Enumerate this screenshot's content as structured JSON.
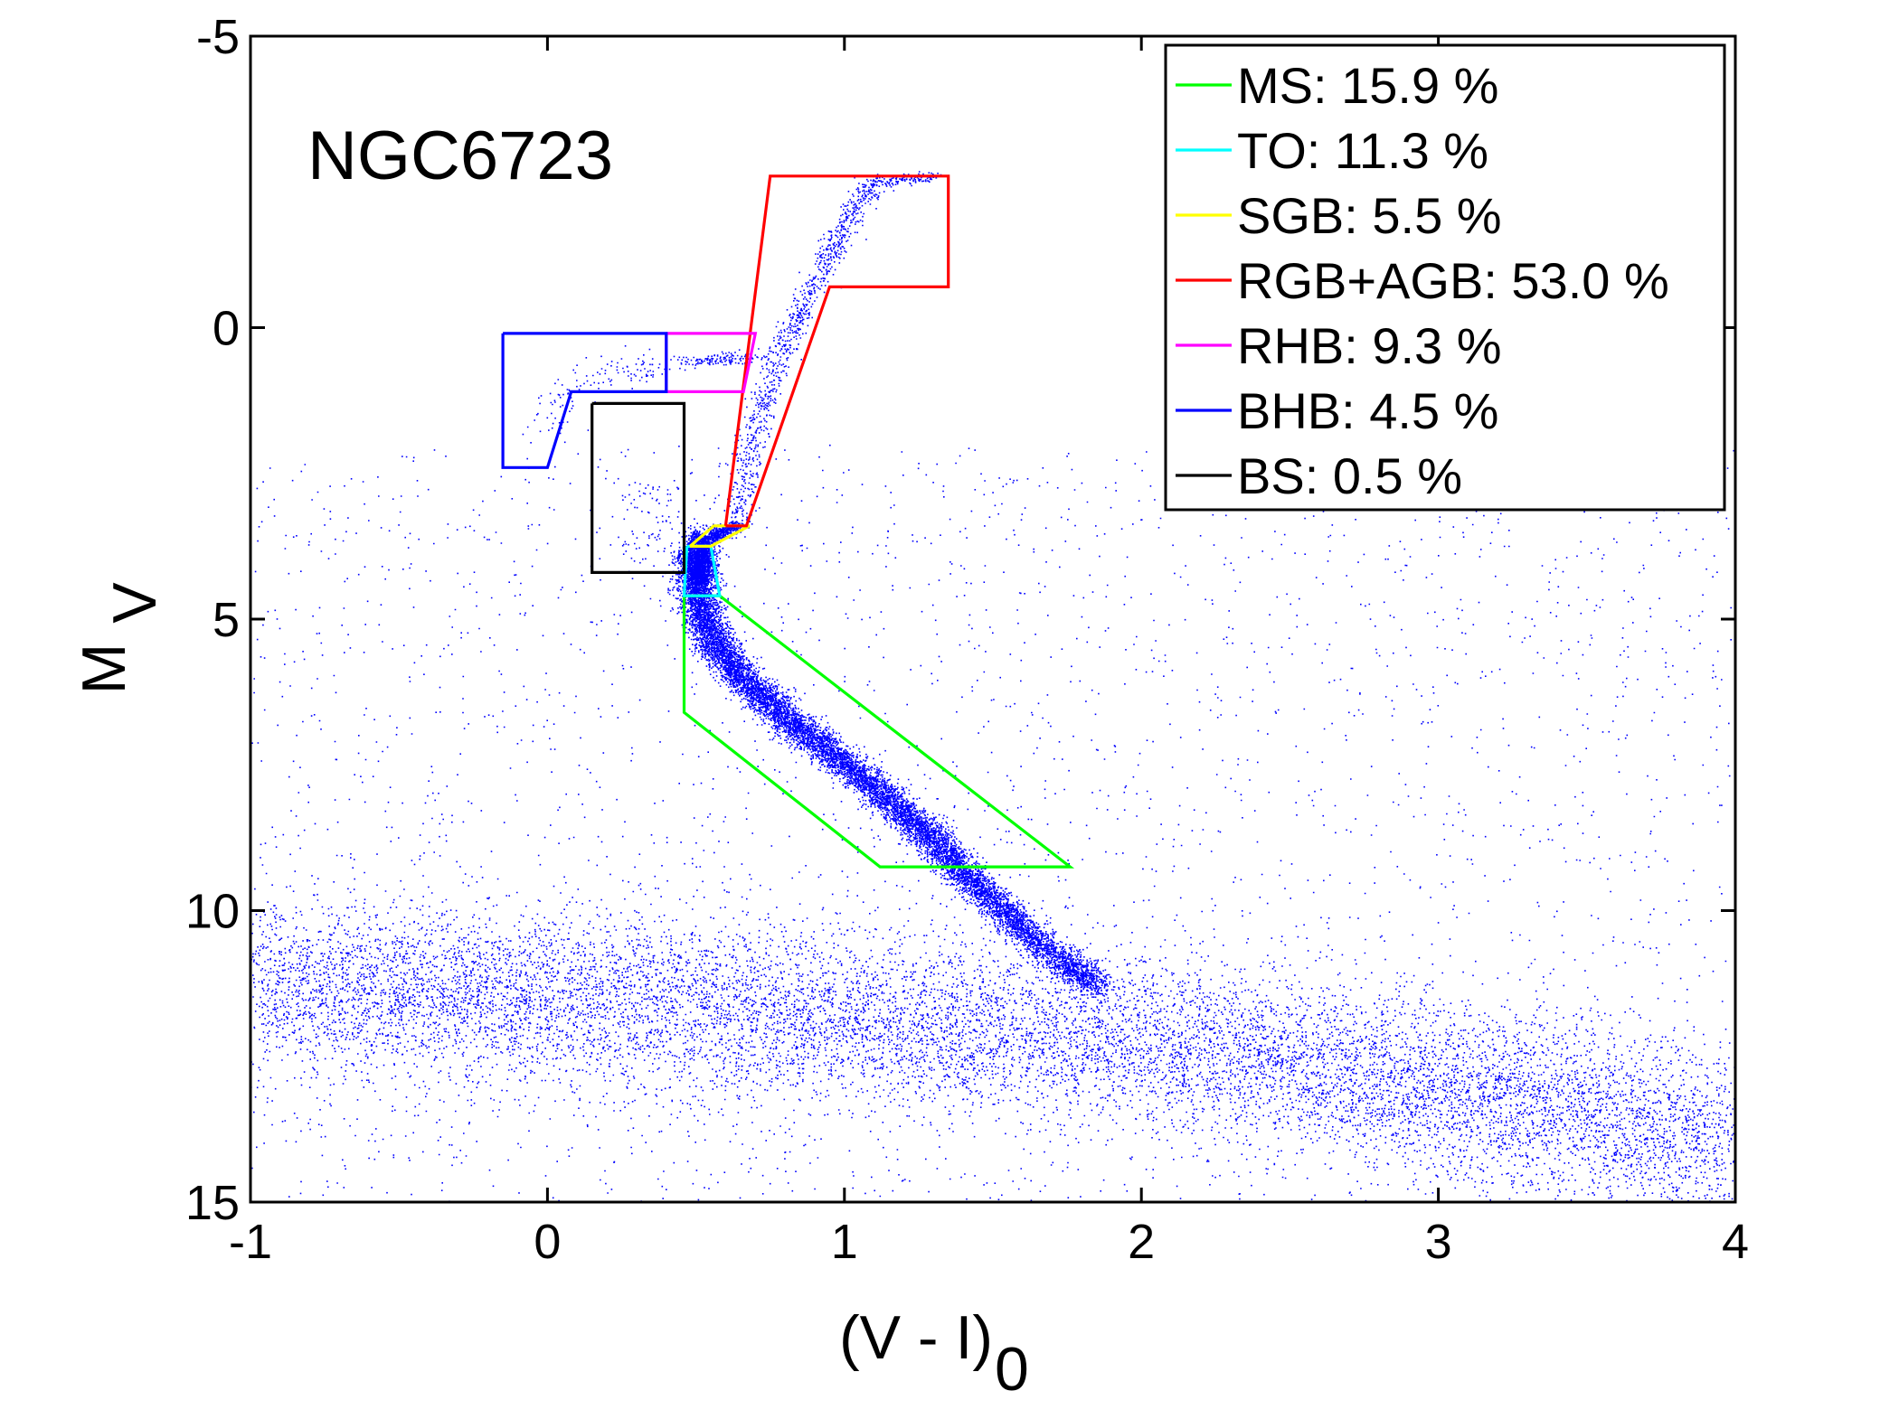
{
  "chart_data": {
    "type": "scatter",
    "title": "",
    "xlabel_main": "(V - I)",
    "xlabel_sub": "0",
    "ylabel_main": "M",
    "ylabel_sub": "V",
    "xlim": [
      -1,
      4
    ],
    "ylim": [
      15,
      -5
    ],
    "y_inverted": true,
    "grid": false,
    "x_ticks": [
      -1,
      0,
      1,
      2,
      3,
      4
    ],
    "x_tick_labels": [
      "-1",
      "0",
      "1",
      "2",
      "3",
      "4"
    ],
    "y_ticks": [
      -5,
      0,
      5,
      10,
      15
    ],
    "y_tick_labels": [
      "-5",
      "0",
      "5",
      "10",
      "15"
    ],
    "annotation": "NGC6723",
    "point_color": "#0000ff",
    "legend_position": "top-right",
    "legend": [
      {
        "label": "MS: 15.9 %",
        "color": "#00ff00"
      },
      {
        "label": "TO: 11.3 %",
        "color": "#00ffff"
      },
      {
        "label": "SGB: 5.5 %",
        "color": "#ffff00"
      },
      {
        "label": "RGB+AGB: 53.0 %",
        "color": "#ff0000"
      },
      {
        "label": "RHB: 9.3 %",
        "color": "#ff00ff"
      },
      {
        "label": "BHB: 4.5 %",
        "color": "#0000ff"
      },
      {
        "label": "BS: 0.5 %",
        "color": "#000000"
      }
    ],
    "regions": [
      {
        "name": "MS",
        "color": "#00ff00",
        "polygon": [
          [
            0.46,
            4.6
          ],
          [
            0.58,
            4.6
          ],
          [
            1.76,
            9.25
          ],
          [
            1.12,
            9.25
          ],
          [
            0.46,
            6.6
          ],
          [
            0.46,
            4.6
          ]
        ]
      },
      {
        "name": "TO",
        "color": "#00ffff",
        "polygon": [
          [
            0.47,
            3.75
          ],
          [
            0.55,
            3.75
          ],
          [
            0.58,
            4.6
          ],
          [
            0.46,
            4.6
          ],
          [
            0.47,
            3.75
          ]
        ]
      },
      {
        "name": "SGB",
        "color": "#ffff00",
        "polygon": [
          [
            0.48,
            3.75
          ],
          [
            0.56,
            3.4
          ],
          [
            0.68,
            3.4
          ],
          [
            0.55,
            3.75
          ],
          [
            0.48,
            3.75
          ]
        ]
      },
      {
        "name": "RGB+AGB",
        "color": "#ff0000",
        "polygon": [
          [
            0.6,
            3.4
          ],
          [
            0.75,
            -2.6
          ],
          [
            1.35,
            -2.6
          ],
          [
            1.35,
            -0.7
          ],
          [
            0.95,
            -0.7
          ],
          [
            0.67,
            3.4
          ],
          [
            0.6,
            3.4
          ]
        ]
      },
      {
        "name": "RHB",
        "color": "#ff00ff",
        "polygon": [
          [
            0.4,
            0.1
          ],
          [
            0.7,
            0.1
          ],
          [
            0.66,
            1.1
          ],
          [
            0.4,
            1.1
          ],
          [
            0.4,
            0.1
          ]
        ]
      },
      {
        "name": "BHB",
        "color": "#0000ff",
        "polygon": [
          [
            -0.15,
            0.1
          ],
          [
            0.4,
            0.1
          ],
          [
            0.4,
            1.1
          ],
          [
            0.08,
            1.1
          ],
          [
            0.0,
            2.4
          ],
          [
            -0.15,
            2.4
          ],
          [
            -0.15,
            0.1
          ]
        ]
      },
      {
        "name": "BS",
        "color": "#000000",
        "polygon": [
          [
            0.15,
            1.3
          ],
          [
            0.46,
            1.3
          ],
          [
            0.46,
            4.2
          ],
          [
            0.15,
            4.2
          ],
          [
            0.15,
            1.3
          ]
        ]
      }
    ],
    "point_groups": [
      {
        "name": "main-sequence",
        "n": 11000,
        "track": [
          [
            0.5,
            3.8
          ],
          [
            0.5,
            4.5
          ],
          [
            0.55,
            5.3
          ],
          [
            0.65,
            6.0
          ],
          [
            0.8,
            6.7
          ],
          [
            0.98,
            7.4
          ],
          [
            1.15,
            8.1
          ],
          [
            1.3,
            8.8
          ],
          [
            1.45,
            9.6
          ],
          [
            1.62,
            10.4
          ],
          [
            1.85,
            11.3
          ]
        ],
        "spread_x": 0.035,
        "spread_y": 0.1
      },
      {
        "name": "turnoff-core",
        "n": 1400,
        "track": [
          [
            0.5,
            3.6
          ],
          [
            0.52,
            4.0
          ],
          [
            0.5,
            4.4
          ]
        ],
        "spread_x": 0.02,
        "spread_y": 0.12
      },
      {
        "name": "subgiant-branch",
        "n": 500,
        "track": [
          [
            0.52,
            3.7
          ],
          [
            0.58,
            3.5
          ],
          [
            0.64,
            3.4
          ]
        ],
        "spread_x": 0.02,
        "spread_y": 0.05
      },
      {
        "name": "red-giant-branch",
        "n": 1100,
        "track": [
          [
            0.64,
            3.4
          ],
          [
            0.68,
            2.0
          ],
          [
            0.74,
            1.0
          ],
          [
            0.82,
            0.0
          ],
          [
            0.92,
            -1.0
          ],
          [
            1.0,
            -1.8
          ],
          [
            1.1,
            -2.5
          ],
          [
            1.3,
            -2.6
          ]
        ],
        "spread_x": 0.025,
        "spread_y": 0.05
      },
      {
        "name": "red-horizontal-branch",
        "n": 140,
        "track": [
          [
            0.48,
            0.55
          ],
          [
            0.58,
            0.55
          ],
          [
            0.68,
            0.45
          ]
        ],
        "spread_x": 0.05,
        "spread_y": 0.05
      },
      {
        "name": "blue-horizontal-branch",
        "n": 140,
        "track": [
          [
            0.0,
            1.9
          ],
          [
            0.05,
            1.2
          ],
          [
            0.15,
            0.8
          ],
          [
            0.3,
            0.7
          ],
          [
            0.4,
            0.65
          ]
        ],
        "spread_x": 0.05,
        "spread_y": 0.15
      },
      {
        "name": "blue-stragglers",
        "n": 90,
        "box": [
          0.25,
          2.6,
          0.45,
          4.1
        ]
      },
      {
        "name": "field-disk",
        "n": 12000,
        "track": [
          [
            -1.0,
            11.3
          ],
          [
            0.0,
            11.5
          ],
          [
            1.0,
            11.8
          ],
          [
            2.0,
            12.2
          ],
          [
            3.0,
            13.0
          ],
          [
            4.0,
            14.0
          ]
        ],
        "spread_x": 0.1,
        "spread_y": 0.75
      },
      {
        "name": "field-halo",
        "n": 3000,
        "box": [
          -1.0,
          2.0,
          4.0,
          15.0
        ]
      }
    ]
  }
}
